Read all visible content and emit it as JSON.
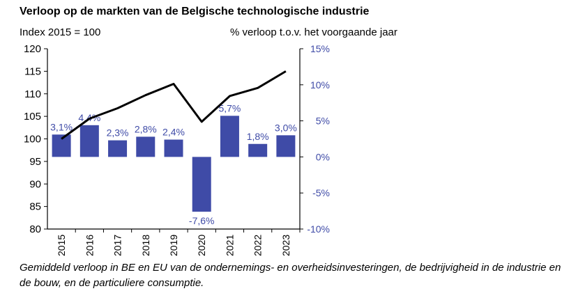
{
  "chart_data": {
    "type": "bar+line",
    "title": "Verloop op de markten van de Belgische technologische industrie",
    "left_axis_label": "Index 2015 = 100",
    "right_axis_label": "% verloop t.o.v. het voorgaande jaar",
    "categories": [
      "2015",
      "2016",
      "2017",
      "2018",
      "2019",
      "2020",
      "2021",
      "2022",
      "2023"
    ],
    "left_axis": {
      "min": 80,
      "max": 120,
      "ticks": [
        "80",
        "85",
        "90",
        "95",
        "100",
        "105",
        "110",
        "115",
        "120"
      ]
    },
    "right_axis": {
      "min": -10,
      "max": 15,
      "ticks": [
        "-10%",
        "-5%",
        "0%",
        "5%",
        "10%",
        "15%"
      ]
    },
    "series": [
      {
        "name": "% verloop t.o.v. het voorgaande jaar",
        "type": "bar",
        "axis": "right",
        "color": "#3F4BA7",
        "values": [
          3.1,
          4.4,
          2.3,
          2.8,
          2.4,
          -7.6,
          5.7,
          1.8,
          3.0
        ],
        "labels": [
          "3,1%",
          "4,4%",
          "2,3%",
          "2,8%",
          "2,4%",
          "-7,6%",
          "5,7%",
          "1,8%",
          "3,0%"
        ]
      },
      {
        "name": "Index 2015 = 100",
        "type": "line",
        "axis": "left",
        "color": "#000000",
        "values": [
          100,
          104.5,
          106.8,
          109.7,
          112.2,
          103.8,
          109.5,
          111.3,
          115
        ]
      }
    ],
    "label_color": "#3F4BA7",
    "caption": "Gemiddeld verloop in BE en EU van de ondernemings- en overheidsinvesteringen, de bedrijvigheid in de industrie en de bouw, en de particuliere consumptie."
  }
}
